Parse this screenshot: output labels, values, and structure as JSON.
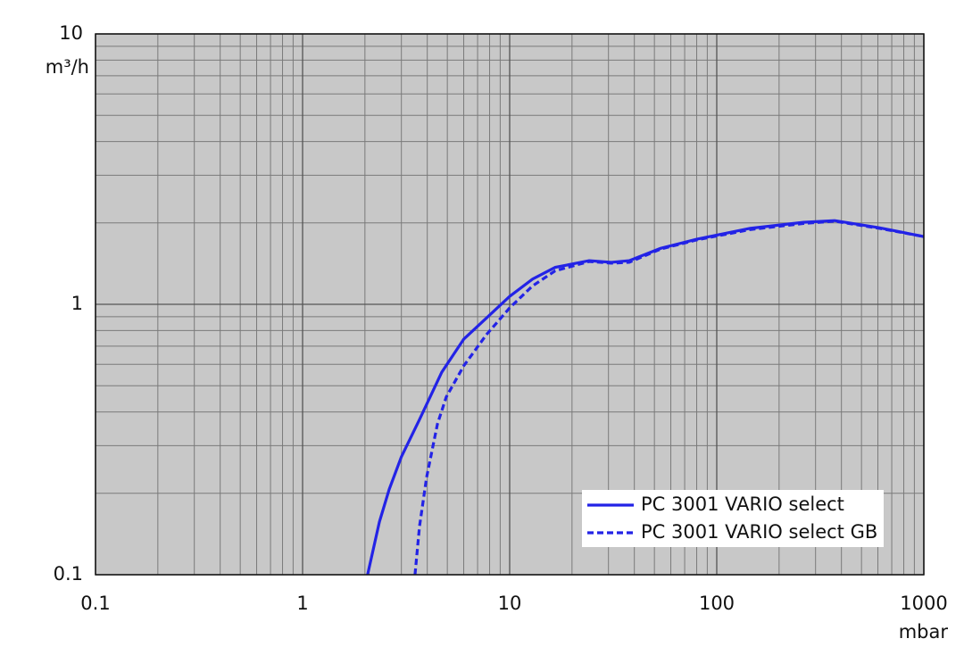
{
  "chart_data": {
    "type": "line",
    "x_label": "mbar",
    "y_label": "m³/h",
    "x_scale": "log",
    "y_scale": "log",
    "grid": true,
    "minor_grid": true,
    "legend": "lower right",
    "xlim": [
      0.1,
      1000
    ],
    "ylim": [
      0.1,
      10
    ],
    "xticks": [
      0.1,
      1,
      10,
      100,
      1000
    ],
    "yticks": [
      0.1,
      1,
      10
    ],
    "series": [
      {
        "name": "PC 3001 VARIO select",
        "color": "#2323e6",
        "style": "solid",
        "x": [
          2.06,
          2.35,
          2.62,
          3.0,
          3.67,
          4.7,
          6.0,
          7.73,
          10,
          12.9,
          16.6,
          24.2,
          31,
          37.8,
          53.5,
          80,
          145,
          262,
          371,
          608,
          1000
        ],
        "values": [
          0.1,
          0.157,
          0.207,
          0.273,
          0.375,
          0.561,
          0.743,
          0.89,
          1.07,
          1.24,
          1.37,
          1.45,
          1.43,
          1.45,
          1.61,
          1.74,
          1.91,
          2.01,
          2.04,
          1.92,
          1.78
        ]
      },
      {
        "name": "PC 3001 VARIO select GB",
        "color": "#2323e6",
        "style": "dashed",
        "x": [
          3.49,
          3.67,
          3.97,
          4.48,
          4.94,
          6.0,
          7.73,
          10,
          12.9,
          16.6,
          24.2,
          31,
          37.8,
          53.5,
          80,
          145,
          262,
          371,
          608,
          1000
        ],
        "values": [
          0.1,
          0.151,
          0.229,
          0.361,
          0.454,
          0.592,
          0.773,
          0.97,
          1.17,
          1.33,
          1.44,
          1.42,
          1.43,
          1.6,
          1.73,
          1.89,
          1.99,
          2.03,
          1.91,
          1.78
        ]
      }
    ]
  }
}
